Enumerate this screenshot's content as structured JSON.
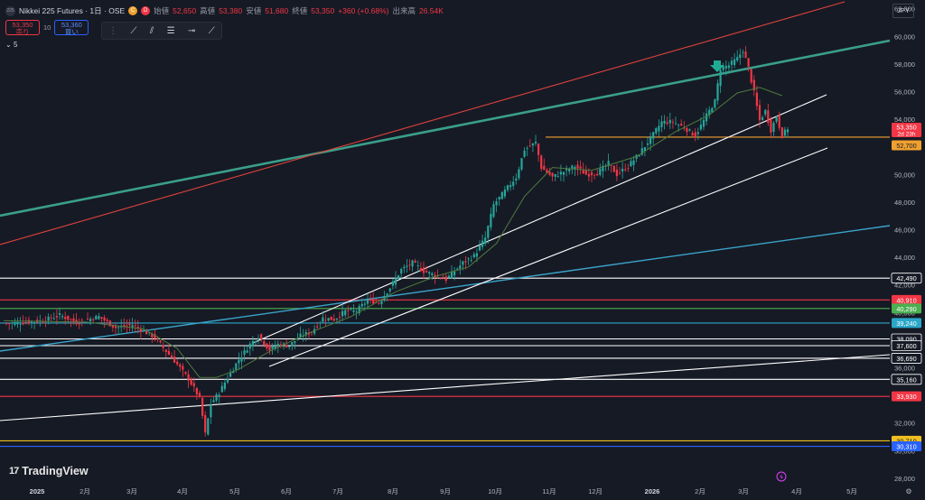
{
  "header": {
    "symbol_icon": "225",
    "title": "Nikkei 225 Futures · 1日 · OSE",
    "badge_c": "C",
    "badge_d": "D",
    "open_label": "始値",
    "open": "52,650",
    "high_label": "高値",
    "high": "53,380",
    "low_label": "安値",
    "low": "51,680",
    "close_label": "終値",
    "close": "53,350",
    "change": "+360 (+0.68%)",
    "volume_label": "出来高",
    "volume": "26.54K"
  },
  "trade": {
    "sell_price": "53,350",
    "sell_label": "売り",
    "qty": "10",
    "buy_price": "53,360",
    "buy_label": "買い"
  },
  "volume_indicator": "5",
  "toolbar": [
    "trendline-icon",
    "channel-icon",
    "fib-icon",
    "ray-icon",
    "extended-line-icon"
  ],
  "currency": "JPY",
  "brand": "TradingView",
  "colors": {
    "background": "#161a25",
    "up": "#26a69a",
    "down": "#f23645",
    "ma": "#4f7a3e",
    "channel": "#ffffff",
    "teal_line": "#3a9f8a",
    "red_line": "#e0433a",
    "blue_line": "#3aa3c9",
    "orange_level": "#f0a030"
  },
  "chart_data": {
    "type": "candlestick",
    "x_labels": [
      "2025",
      "2月",
      "3月",
      "4月",
      "5月",
      "6月",
      "7月",
      "8月",
      "9月",
      "10月",
      "11月",
      "12月",
      "2026",
      "2月",
      "3月",
      "4月",
      "5月"
    ],
    "y_ticks": [
      28000,
      30000,
      32000,
      34000,
      36000,
      38000,
      40000,
      42000,
      44000,
      46000,
      48000,
      50000,
      52000,
      54000,
      56000,
      58000,
      60000,
      62000
    ],
    "ylim": [
      27600,
      62500
    ],
    "price_path": [
      [
        0,
        39200
      ],
      [
        14,
        39400
      ],
      [
        20,
        39800
      ],
      [
        26,
        39300
      ],
      [
        34,
        39700
      ],
      [
        40,
        38900
      ],
      [
        46,
        39100
      ],
      [
        54,
        38200
      ],
      [
        58,
        37200
      ],
      [
        61,
        36500
      ],
      [
        66,
        35200
      ],
      [
        70,
        33800
      ],
      [
        72,
        31200
      ],
      [
        74,
        33400
      ],
      [
        77,
        34200
      ],
      [
        80,
        35300
      ],
      [
        84,
        36600
      ],
      [
        88,
        37700
      ],
      [
        91,
        38300
      ],
      [
        95,
        37300
      ],
      [
        98,
        37700
      ],
      [
        102,
        37600
      ],
      [
        106,
        38300
      ],
      [
        110,
        38600
      ],
      [
        114,
        39600
      ],
      [
        118,
        39500
      ],
      [
        122,
        40100
      ],
      [
        126,
        40100
      ],
      [
        130,
        40900
      ],
      [
        134,
        40700
      ],
      [
        138,
        41800
      ],
      [
        142,
        43100
      ],
      [
        146,
        43600
      ],
      [
        150,
        43000
      ],
      [
        154,
        42700
      ],
      [
        158,
        42400
      ],
      [
        160,
        42800
      ],
      [
        164,
        43600
      ],
      [
        168,
        44100
      ],
      [
        172,
        45400
      ],
      [
        175,
        47800
      ],
      [
        179,
        48800
      ],
      [
        183,
        49800
      ],
      [
        186,
        51800
      ],
      [
        190,
        52300
      ],
      [
        192,
        50500
      ],
      [
        196,
        49800
      ],
      [
        200,
        50200
      ],
      [
        204,
        50600
      ],
      [
        208,
        50000
      ],
      [
        212,
        50100
      ],
      [
        216,
        50800
      ],
      [
        219,
        50000
      ],
      [
        223,
        50600
      ],
      [
        227,
        51500
      ],
      [
        231,
        52600
      ],
      [
        235,
        53800
      ],
      [
        239,
        53800
      ],
      [
        243,
        53400
      ],
      [
        247,
        52800
      ],
      [
        250,
        53900
      ],
      [
        254,
        55300
      ],
      [
        256,
        57700
      ],
      [
        259,
        57900
      ],
      [
        262,
        58400
      ],
      [
        264,
        59000
      ],
      [
        266,
        57700
      ],
      [
        268,
        55900
      ],
      [
        270,
        53900
      ],
      [
        272,
        54600
      ],
      [
        274,
        53200
      ],
      [
        276,
        54200
      ],
      [
        278,
        52800
      ],
      [
        280,
        53350
      ]
    ],
    "moving_average": [
      [
        0,
        39400
      ],
      [
        30,
        39300
      ],
      [
        50,
        38800
      ],
      [
        62,
        37400
      ],
      [
        70,
        35300
      ],
      [
        76,
        35300
      ],
      [
        84,
        35900
      ],
      [
        96,
        37300
      ],
      [
        110,
        38600
      ],
      [
        124,
        39700
      ],
      [
        140,
        41500
      ],
      [
        154,
        42600
      ],
      [
        166,
        43300
      ],
      [
        176,
        45000
      ],
      [
        186,
        48400
      ],
      [
        196,
        50500
      ],
      [
        210,
        50300
      ],
      [
        226,
        51300
      ],
      [
        240,
        53100
      ],
      [
        252,
        54300
      ],
      [
        262,
        55900
      ],
      [
        270,
        56300
      ],
      [
        278,
        55700
      ]
    ],
    "drawings": {
      "levels": [
        {
          "value": 42490,
          "label": "42,490",
          "color": "#ffffff"
        },
        {
          "value": 40910,
          "label": "40,910",
          "color": "#f23645"
        },
        {
          "value": 40290,
          "label": "40,290",
          "color": "#4caf50"
        },
        {
          "value": 39240,
          "label": "39,240",
          "color": "#2aa7c9"
        },
        {
          "value": 38090,
          "label": "38,090",
          "color": "#ffffff"
        },
        {
          "value": 37600,
          "label": "37,600",
          "color": "#ffffff"
        },
        {
          "value": 36690,
          "label": "36,690",
          "color": "#ffffff"
        },
        {
          "value": 35160,
          "label": "35,160",
          "color": "#ffffff"
        },
        {
          "value": 33930,
          "label": "33,930",
          "color": "#f23645"
        },
        {
          "value": 30710,
          "label": "30,710",
          "color": "#f0c020"
        },
        {
          "value": 30310,
          "label": "30,310",
          "color": "#2962ff"
        }
      ],
      "price_tags": [
        {
          "value": 53350,
          "label": "53,350",
          "sub": "2d 23h",
          "color": "#f23645"
        },
        {
          "value": 52700,
          "label": "52,700",
          "color": "#f0a030"
        }
      ]
    }
  }
}
